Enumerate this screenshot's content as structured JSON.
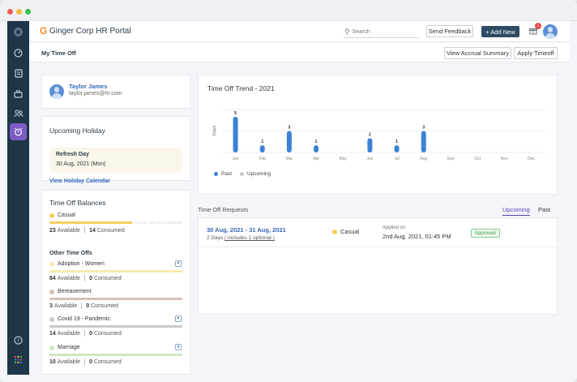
{
  "app": {
    "title": "Ginger Corp HR Portal"
  },
  "header": {
    "search_placeholder": "Search",
    "send_feedback": "Send Feedback",
    "add_new": "+ Add New",
    "notification_count": "1"
  },
  "page": {
    "title": "My Time Off",
    "view_accrual": "View Accrual Summary",
    "apply_timeoff": "Apply Timeoff"
  },
  "profile": {
    "name": "Taylor James",
    "email": "taylor.james@hr.com"
  },
  "holiday": {
    "title": "Upcoming Holiday",
    "name": "Refresh Day",
    "date": "30 Aug, 2021 (Mon)",
    "link": "View Holiday Calendar"
  },
  "balances": {
    "title": "Time Off Balances",
    "primary": {
      "name": "Casual",
      "available": "23",
      "consumed": "14",
      "color": "#f6cf5c",
      "available_label": "Available",
      "consumed_label": "Consumed",
      "fill": 0.62
    },
    "other_title": "Other Time Offs",
    "others": [
      {
        "name": "Adoption - Women",
        "available": "84",
        "consumed": "0",
        "color": "#f6eab0",
        "available_label": "Available",
        "consumed_label": "Consumed"
      },
      {
        "name": "Bereavement",
        "available": "3",
        "consumed": "0",
        "color": "#d5c1b8",
        "available_label": "Available",
        "consumed_label": "Consumed"
      },
      {
        "name": "Covid 19 - Pandemic",
        "available": "14",
        "consumed": "0",
        "color": "#c9c9c9",
        "available_label": "Available",
        "consumed_label": "Consumed"
      },
      {
        "name": "Marriage",
        "available": "10",
        "consumed": "0",
        "color": "#cfe6c2",
        "available_label": "Available",
        "consumed_label": "Consumed"
      }
    ]
  },
  "chart_data": {
    "type": "bar",
    "title": "Time Off Trend - 2021",
    "ylabel": "Days",
    "categories": [
      "Jan",
      "Feb",
      "Mar",
      "Apr",
      "May",
      "Jun",
      "Jul",
      "Aug",
      "Sep",
      "Oct",
      "Nov",
      "Dec"
    ],
    "series": [
      {
        "name": "Past",
        "values": [
          5,
          1,
          3,
          1,
          0,
          2,
          1,
          3,
          0,
          0,
          0,
          0
        ],
        "color": "#3b82d6"
      },
      {
        "name": "Upcoming",
        "values": [
          0,
          0,
          0,
          0,
          0,
          0,
          0,
          0,
          0,
          0,
          0,
          0
        ],
        "color": "#c6c9cd"
      }
    ],
    "ylim": [
      0,
      6
    ],
    "grid": true,
    "legend_position": "bottom-left"
  },
  "requests": {
    "title": "Time Off Requests",
    "tabs": [
      "Upcoming",
      "Past"
    ],
    "items": [
      {
        "dates": "30 Aug, 2021  -  31 Aug, 2021",
        "duration": "2 Days",
        "duration_note": "( includes 1 optional )",
        "type": "Casual",
        "applied_label": "Applied on",
        "applied_on": "2nd Aug, 2021, 01:45 PM",
        "status": "Approved"
      }
    ]
  }
}
